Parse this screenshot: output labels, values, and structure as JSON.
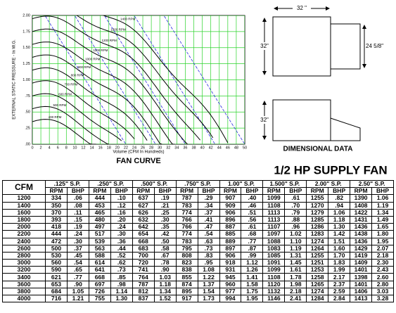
{
  "fan_curve": {
    "title": "FAN CURVE",
    "x_label": "Volume (CFM In Hundreds)",
    "y_label": "EXTERNAL STATIC PRESSURE - In W.G.",
    "xticks": [
      0,
      2,
      4,
      6,
      8,
      10,
      12,
      14,
      16,
      18,
      20,
      22,
      24,
      26,
      28,
      30,
      32,
      34,
      36,
      38,
      40,
      42,
      44,
      46,
      48,
      50
    ],
    "xlim": [
      0,
      50
    ],
    "ylim": [
      0,
      2
    ],
    "yticks": [
      {
        "value": 0,
        "label": ".00"
      },
      {
        "value": 0.25,
        "label": ".25"
      },
      {
        "value": 0.5,
        "label": ".50"
      },
      {
        "value": 0.75,
        "label": ".75"
      },
      {
        "value": 1,
        "label": "1.00"
      },
      {
        "value": 1.25,
        "label": "1.25"
      },
      {
        "value": 1.5,
        "label": "1.50"
      },
      {
        "value": 1.75,
        "label": "1.75"
      },
      {
        "value": 2,
        "label": "2.00"
      }
    ],
    "rpm_labels": [
      "400 RPM",
      "500 RPM",
      "600 RPM",
      "700 RPM",
      "800 RPM",
      "900 RPM",
      "1000 RPM",
      "1100 RPM",
      "1200 RPM",
      "1300 RPM",
      "1400 RPM"
    ]
  },
  "dimensions": {
    "title": "DIMENSIONAL DATA",
    "top_width": "32 \"",
    "top_height": "32\"",
    "top_depth": "24 5/8\"",
    "bottom_height": "32\""
  },
  "table": {
    "title": "1/2 HP SUPPLY FAN",
    "cfm_header": "CFM",
    "sub_headers": [
      "RPM",
      "BHP"
    ],
    "sp_headers": [
      ".125\" S.P.",
      ".250\" S.P.",
      ".500\" S.P.",
      ".750\" S.P.",
      "1.00\" S.P.",
      "1.500\" S.P.",
      "2.00\" S.P.",
      "2.50\" S.P."
    ],
    "rows": [
      [
        "1200",
        "334",
        ".06",
        "444",
        ".10",
        "637",
        ".19",
        "787",
        ".29",
        "907",
        ".40",
        "1099",
        ".61",
        "1255",
        ".82",
        "1390",
        "1.06"
      ],
      [
        "1400",
        "350",
        ".08",
        "453",
        ".12",
        "627",
        ".21",
        "783",
        ".34",
        "909",
        ".46",
        "1108",
        ".70",
        "1270",
        ".94",
        "1408",
        "1.19"
      ],
      [
        "1600",
        "370",
        ".11",
        "465",
        ".16",
        "626",
        ".25",
        "774",
        ".37",
        "906",
        ".51",
        "1113",
        ".79",
        "1279",
        "1.06",
        "1422",
        "1.34"
      ],
      [
        "1800",
        "393",
        ".15",
        "480",
        ".20",
        "632",
        ".30",
        "766",
        ".41",
        "896",
        ".56",
        "1113",
        ".88",
        "1285",
        "1.18",
        "1431",
        "1.49"
      ],
      [
        "2000",
        "418",
        ".19",
        "497",
        ".24",
        "642",
        ".35",
        "766",
        ".47",
        "887",
        ".61",
        "1107",
        ".96",
        "1286",
        "1.30",
        "1436",
        "1.65"
      ],
      [
        "2200",
        "444",
        ".24",
        "517",
        ".30",
        "654",
        ".42",
        "774",
        ".54",
        "885",
        ".68",
        "1097",
        "1.02",
        "1283",
        "1.42",
        "1438",
        "1.80"
      ],
      [
        "2400",
        "472",
        ".30",
        "539",
        ".36",
        "668",
        ".50",
        "783",
        ".63",
        "889",
        ".77",
        "1088",
        "1.10",
        "1274",
        "1.51",
        "1436",
        "1.95"
      ],
      [
        "2600",
        "500",
        ".37",
        "563",
        ".44",
        "683",
        ".58",
        "795",
        ".73",
        "897",
        ".87",
        "1083",
        "1.19",
        "1264",
        "1.60",
        "1429",
        "2.07"
      ],
      [
        "2800",
        "530",
        ".45",
        "588",
        ".52",
        "700",
        ".67",
        "808",
        ".83",
        "906",
        ".99",
        "1085",
        "1.31",
        "1255",
        "1.70",
        "1419",
        "2.18"
      ],
      [
        "3000",
        "560",
        ".54",
        "614",
        ".62",
        "720",
        ".78",
        "823",
        ".95",
        "918",
        "1.12",
        "1091",
        "1.45",
        "1251",
        "1.83",
        "1409",
        "2.30"
      ],
      [
        "3200",
        "590",
        ".65",
        "641",
        ".73",
        "741",
        ".90",
        "838",
        "1.08",
        "931",
        "1.26",
        "1099",
        "1.61",
        "1253",
        "1.99",
        "1401",
        "2.43"
      ],
      [
        "3400",
        "621",
        ".77",
        "668",
        ".85",
        "764",
        "1.03",
        "855",
        "1.22",
        "945",
        "1.41",
        "1108",
        "1.78",
        "1258",
        "2.17",
        "1398",
        "2.60"
      ],
      [
        "3600",
        "653",
        ".90",
        "697",
        ".98",
        "787",
        "1.18",
        "874",
        "1.37",
        "960",
        "1.58",
        "1120",
        "1.98",
        "1265",
        "2.37",
        "1401",
        "2.80"
      ],
      [
        "3800",
        "684",
        "1.05",
        "726",
        "1.14",
        "812",
        "1.34",
        "895",
        "1.54",
        "977",
        "1.75",
        "1132",
        "2.18",
        "1274",
        "2.59",
        "1406",
        "3.03"
      ],
      [
        "4000",
        "716",
        "1.21",
        "755",
        "1.30",
        "837",
        "1.52",
        "917",
        "1.73",
        "994",
        "1.95",
        "1146",
        "2.41",
        "1284",
        "2.84",
        "1413",
        "3.28"
      ]
    ]
  }
}
